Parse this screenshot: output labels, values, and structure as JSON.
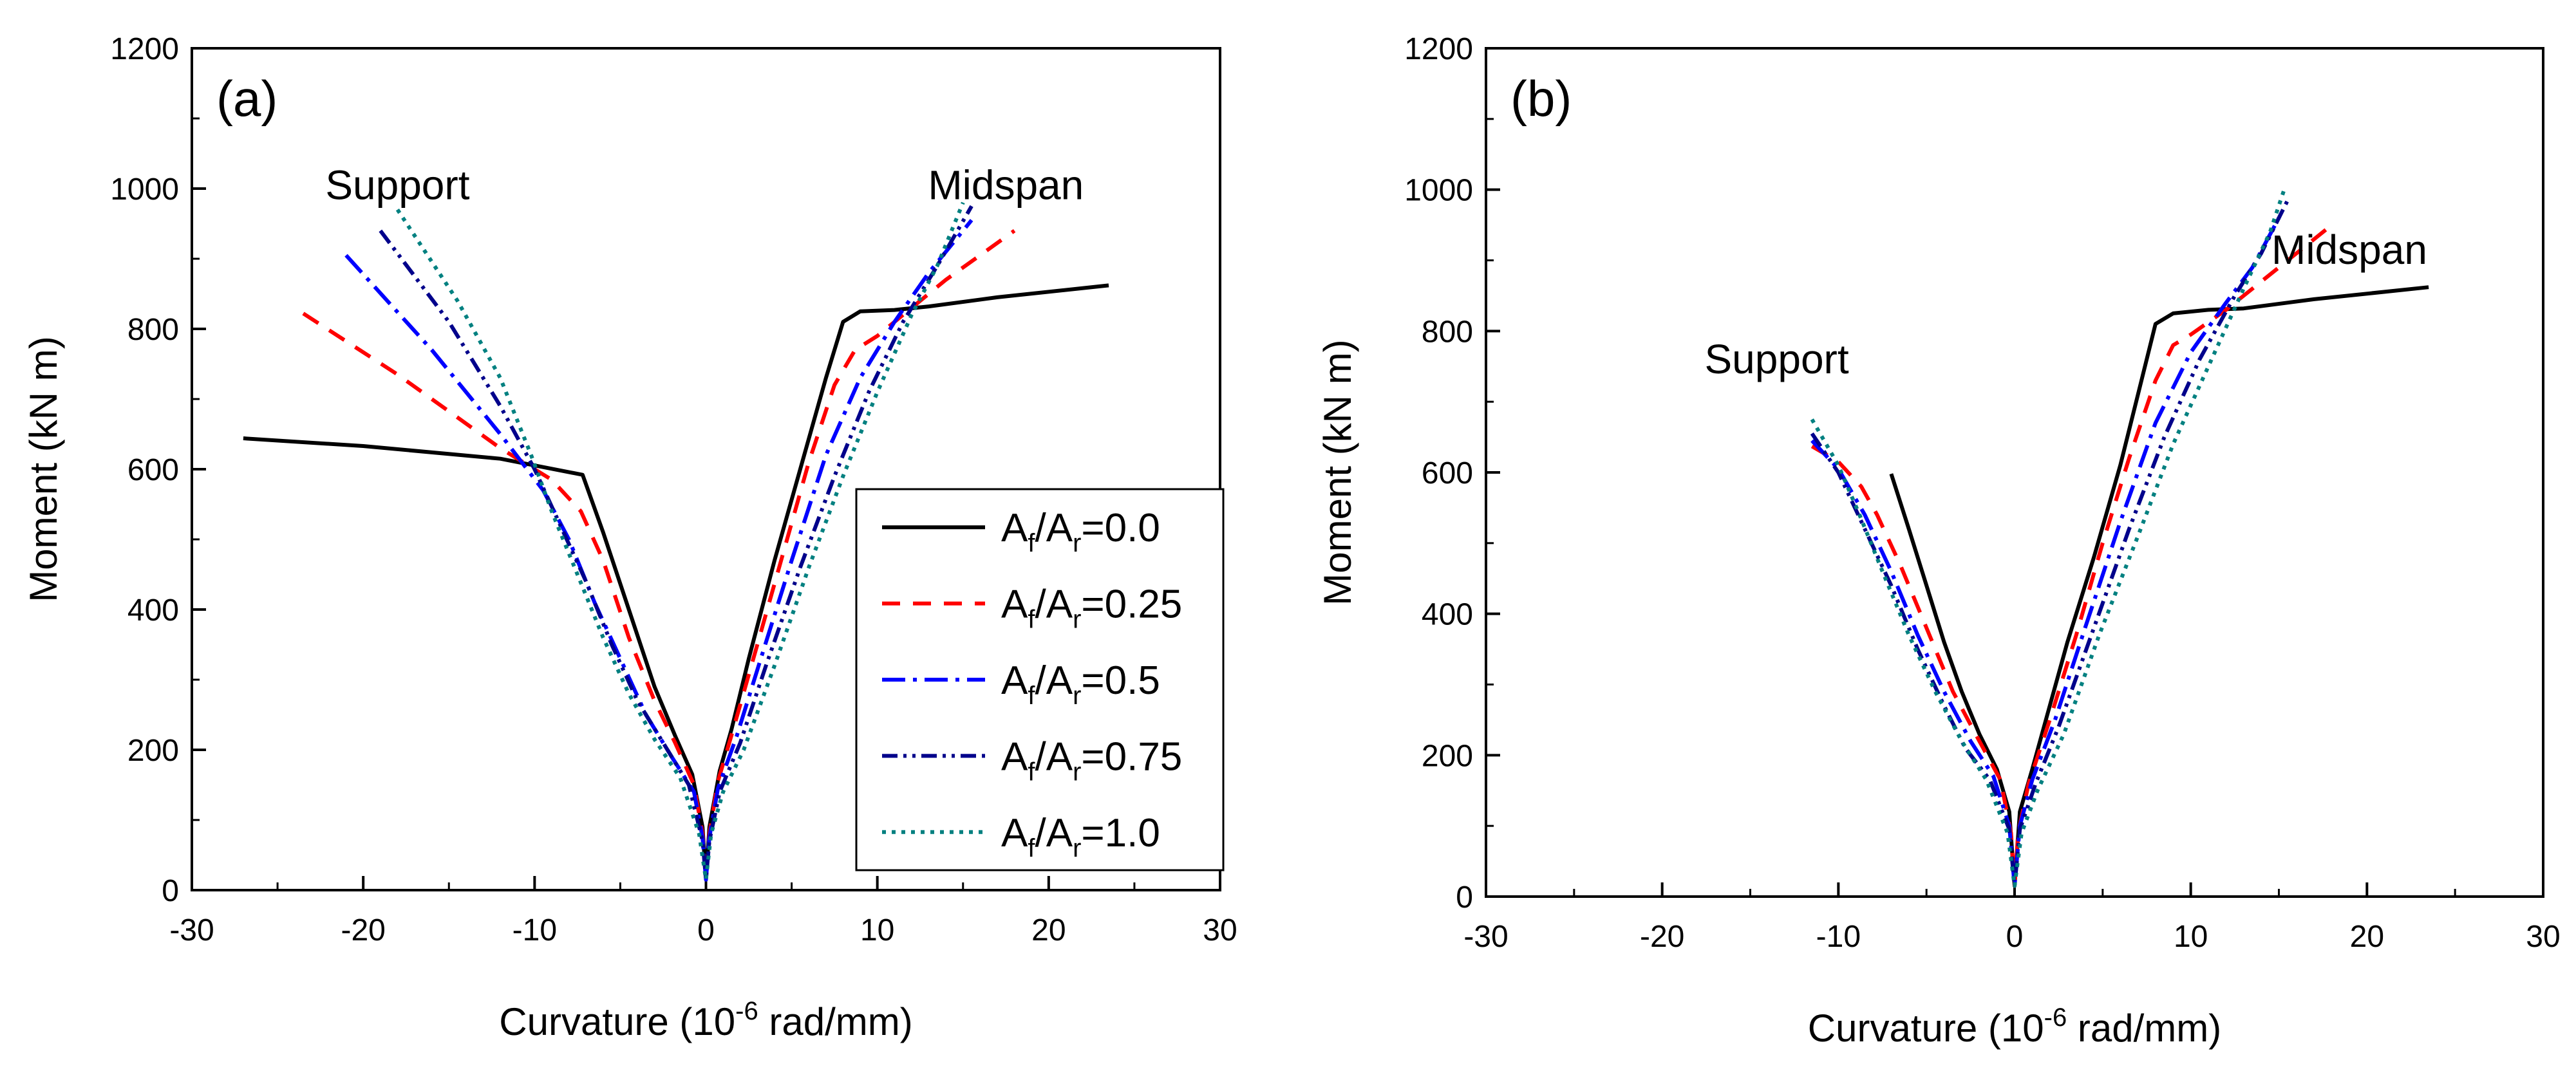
{
  "chart_data": [
    {
      "type": "line",
      "panel_label": "(a)",
      "xlabel_prefix": "Curvature (10",
      "xlabel_exp": "-6",
      "xlabel_suffix": " rad/mm)",
      "ylabel": "Moment (kN m)",
      "xlim": [
        -30,
        30
      ],
      "ylim": [
        0,
        1200
      ],
      "xticks": [
        -30,
        -20,
        -10,
        0,
        10,
        20,
        30
      ],
      "yticks": [
        0,
        200,
        400,
        600,
        800,
        1000,
        1200
      ],
      "annotations": [
        {
          "text": "Support",
          "x": -18,
          "y": 985
        },
        {
          "text": "Midspan",
          "x": 17.5,
          "y": 985
        }
      ],
      "legend_location": "center-right",
      "series": [
        {
          "name": "Af/Ar=0.0",
          "color": "#000000",
          "dash": "",
          "points": [
            [
              -27,
              644
            ],
            [
              -20,
              633
            ],
            [
              -12,
              615
            ],
            [
              -7.2,
              592
            ],
            [
              -6,
              510
            ],
            [
              -4.5,
              400
            ],
            [
              -3,
              290
            ],
            [
              -1.8,
              220
            ],
            [
              -0.8,
              165
            ],
            [
              -0.2,
              90
            ],
            [
              0,
              15
            ],
            [
              0.2,
              90
            ],
            [
              0.8,
              170
            ],
            [
              1.5,
              230
            ],
            [
              2.5,
              330
            ],
            [
              4,
              470
            ],
            [
              5.5,
              600
            ],
            [
              7,
              730
            ],
            [
              8,
              810
            ],
            [
              9,
              825
            ],
            [
              11,
              827
            ],
            [
              13,
              832
            ],
            [
              17,
              845
            ],
            [
              23.5,
              862
            ]
          ]
        },
        {
          "name": "Af/Ar=0.25",
          "color": "#ff0000",
          "dash": "28 20",
          "points": [
            [
              -23.5,
              822
            ],
            [
              -18,
              735
            ],
            [
              -12,
              630
            ],
            [
              -9,
              585
            ],
            [
              -7.3,
              540
            ],
            [
              -6,
              470
            ],
            [
              -4.5,
              360
            ],
            [
              -3,
              270
            ],
            [
              -1.8,
              210
            ],
            [
              -0.7,
              150
            ],
            [
              -0.2,
              80
            ],
            [
              0,
              15
            ],
            [
              0.2,
              80
            ],
            [
              0.7,
              155
            ],
            [
              1.6,
              230
            ],
            [
              3,
              350
            ],
            [
              4.5,
              480
            ],
            [
              6,
              610
            ],
            [
              7.5,
              720
            ],
            [
              8.7,
              770
            ],
            [
              10,
              790
            ],
            [
              12,
              830
            ],
            [
              14,
              870
            ],
            [
              18,
              940
            ]
          ]
        },
        {
          "name": "Af/Ar=0.5",
          "color": "#0000ff",
          "dash": "36 12 6 12",
          "points": [
            [
              -21,
              905
            ],
            [
              -16,
              770
            ],
            [
              -12,
              650
            ],
            [
              -9.5,
              570
            ],
            [
              -8,
              500
            ],
            [
              -6.5,
              410
            ],
            [
              -5,
              330
            ],
            [
              -3.5,
              250
            ],
            [
              -2,
              190
            ],
            [
              -0.7,
              140
            ],
            [
              -0.2,
              75
            ],
            [
              0,
              15
            ],
            [
              0.2,
              75
            ],
            [
              0.7,
              145
            ],
            [
              1.8,
              220
            ],
            [
              3.2,
              330
            ],
            [
              5,
              470
            ],
            [
              7,
              620
            ],
            [
              9,
              730
            ],
            [
              11,
              810
            ],
            [
              13,
              880
            ],
            [
              15.5,
              955
            ]
          ]
        },
        {
          "name": "Af/Ar=0.75",
          "color": "#00008b",
          "dash": "24 9 5 9 5 9",
          "points": [
            [
              -19,
              940
            ],
            [
              -15,
              810
            ],
            [
              -12,
              690
            ],
            [
              -10,
              600
            ],
            [
              -8.5,
              520
            ],
            [
              -7,
              440
            ],
            [
              -5.5,
              350
            ],
            [
              -4,
              270
            ],
            [
              -2.5,
              210
            ],
            [
              -1,
              150
            ],
            [
              -0.2,
              70
            ],
            [
              0,
              15
            ],
            [
              0.2,
              70
            ],
            [
              0.8,
              140
            ],
            [
              2,
              210
            ],
            [
              3.5,
              320
            ],
            [
              5.5,
              460
            ],
            [
              7.5,
              590
            ],
            [
              9.5,
              710
            ],
            [
              11.5,
              810
            ],
            [
              13.5,
              890
            ],
            [
              15.5,
              975
            ]
          ]
        },
        {
          "name": "Af/Ar=1.0",
          "color": "#008080",
          "dash": "6 9",
          "points": [
            [
              -18,
              970
            ],
            [
              -14.5,
              840
            ],
            [
              -12,
              730
            ],
            [
              -10.2,
              620
            ],
            [
              -9,
              540
            ],
            [
              -7.5,
              450
            ],
            [
              -6,
              360
            ],
            [
              -4.5,
              280
            ],
            [
              -3,
              215
            ],
            [
              -1.5,
              160
            ],
            [
              -0.4,
              80
            ],
            [
              0,
              15
            ],
            [
              0.3,
              80
            ],
            [
              1,
              140
            ],
            [
              2.2,
              200
            ],
            [
              4,
              320
            ],
            [
              6,
              460
            ],
            [
              8,
              590
            ],
            [
              10,
              710
            ],
            [
              12,
              820
            ],
            [
              13.5,
              890
            ],
            [
              15,
              980
            ]
          ]
        }
      ]
    },
    {
      "type": "line",
      "panel_label": "(b)",
      "xlabel_prefix": "Curvature (10",
      "xlabel_exp": "-6",
      "xlabel_suffix": " rad/mm)",
      "ylabel": "Moment (kN m)",
      "xlim": [
        -30,
        30
      ],
      "ylim": [
        0,
        1200
      ],
      "xticks": [
        -30,
        -20,
        -10,
        0,
        10,
        20,
        30
      ],
      "yticks": [
        0,
        200,
        400,
        600,
        800,
        1000,
        1200
      ],
      "annotations": [
        {
          "text": "Support",
          "x": -13.5,
          "y": 740
        },
        {
          "text": "Midspan",
          "x": 19,
          "y": 895
        }
      ],
      "series": [
        {
          "name": "Af/Ar=0.0",
          "color": "#000000",
          "dash": "",
          "points": [
            [
              -7,
              598
            ],
            [
              -6,
              520
            ],
            [
              -5,
              440
            ],
            [
              -4,
              360
            ],
            [
              -3,
              290
            ],
            [
              -2,
              230
            ],
            [
              -1,
              180
            ],
            [
              -0.3,
              120
            ],
            [
              0,
              15
            ],
            [
              0.3,
              120
            ],
            [
              1,
              180
            ],
            [
              2,
              270
            ],
            [
              3,
              360
            ],
            [
              4.5,
              480
            ],
            [
              6,
              610
            ],
            [
              7,
              710
            ],
            [
              8,
              810
            ],
            [
              9,
              825
            ],
            [
              11,
              830
            ],
            [
              13,
              832
            ],
            [
              17,
              845
            ],
            [
              23.5,
              862
            ]
          ]
        },
        {
          "name": "Af/Ar=0.25",
          "color": "#ff0000",
          "dash": "28 20",
          "points": [
            [
              -11.5,
              637
            ],
            [
              -10,
              615
            ],
            [
              -8.7,
              580
            ],
            [
              -7.8,
              540
            ],
            [
              -6.5,
              470
            ],
            [
              -5,
              380
            ],
            [
              -3.5,
              290
            ],
            [
              -2,
              220
            ],
            [
              -0.8,
              165
            ],
            [
              -0.2,
              90
            ],
            [
              0,
              15
            ],
            [
              0.2,
              90
            ],
            [
              0.8,
              160
            ],
            [
              2,
              250
            ],
            [
              3.5,
              370
            ],
            [
              5,
              500
            ],
            [
              6.5,
              620
            ],
            [
              8,
              730
            ],
            [
              9,
              780
            ],
            [
              10,
              795
            ],
            [
              12,
              830
            ],
            [
              14,
              870
            ],
            [
              18,
              950
            ]
          ]
        },
        {
          "name": "Af/Ar=0.5",
          "color": "#0000ff",
          "dash": "36 12 6 12",
          "points": [
            [
              -11.5,
              645
            ],
            [
              -10,
              605
            ],
            [
              -8.5,
              540
            ],
            [
              -7,
              460
            ],
            [
              -5.5,
              370
            ],
            [
              -4,
              290
            ],
            [
              -2.5,
              220
            ],
            [
              -1.2,
              170
            ],
            [
              -0.3,
              100
            ],
            [
              0,
              15
            ],
            [
              0.3,
              100
            ],
            [
              1,
              165
            ],
            [
              2.3,
              250
            ],
            [
              4,
              380
            ],
            [
              6,
              530
            ],
            [
              8,
              670
            ],
            [
              10,
              770
            ],
            [
              12,
              840
            ],
            [
              13.5,
              890
            ],
            [
              15,
              960
            ]
          ]
        },
        {
          "name": "Af/Ar=0.75",
          "color": "#00008b",
          "dash": "24 9 5 9 5 9",
          "points": [
            [
              -11.5,
              655
            ],
            [
              -10,
              600
            ],
            [
              -8.5,
              520
            ],
            [
              -7,
              440
            ],
            [
              -5.5,
              350
            ],
            [
              -4,
              270
            ],
            [
              -2.8,
              210
            ],
            [
              -1.4,
              165
            ],
            [
              -0.3,
              95
            ],
            [
              0,
              15
            ],
            [
              0.3,
              95
            ],
            [
              1.2,
              160
            ],
            [
              2.5,
              240
            ],
            [
              4.5,
              380
            ],
            [
              6.5,
              520
            ],
            [
              8.5,
              650
            ],
            [
              10.5,
              760
            ],
            [
              12.5,
              850
            ],
            [
              14,
              910
            ],
            [
              15.5,
              985
            ]
          ]
        },
        {
          "name": "Af/Ar=1.0",
          "color": "#008080",
          "dash": "6 9",
          "points": [
            [
              -11.5,
              675
            ],
            [
              -10,
              610
            ],
            [
              -8.8,
              540
            ],
            [
              -7.5,
              460
            ],
            [
              -6,
              370
            ],
            [
              -4.5,
              290
            ],
            [
              -3,
              220
            ],
            [
              -1.6,
              165
            ],
            [
              -0.4,
              90
            ],
            [
              0,
              15
            ],
            [
              0.4,
              90
            ],
            [
              1.3,
              150
            ],
            [
              2.8,
              230
            ],
            [
              4.8,
              370
            ],
            [
              7,
              510
            ],
            [
              9,
              640
            ],
            [
              11,
              750
            ],
            [
              13,
              860
            ],
            [
              14.5,
              940
            ],
            [
              15.3,
              1000
            ]
          ]
        }
      ]
    }
  ],
  "legend": {
    "items": [
      {
        "base": "A",
        "sub1": "f",
        "slash": "/A",
        "sub2": "r",
        "value": "=0.0",
        "color": "#000000",
        "dash": ""
      },
      {
        "base": "A",
        "sub1": "f",
        "slash": "/A",
        "sub2": "r",
        "value": "=0.25",
        "color": "#ff0000",
        "dash": "28 20"
      },
      {
        "base": "A",
        "sub1": "f",
        "slash": "/A",
        "sub2": "r",
        "value": "=0.5",
        "color": "#0000ff",
        "dash": "36 12 6 12"
      },
      {
        "base": "A",
        "sub1": "f",
        "slash": "/A",
        "sub2": "r",
        "value": "=0.75",
        "color": "#00008b",
        "dash": "24 9 5 9 5 9"
      },
      {
        "base": "A",
        "sub1": "f",
        "slash": "/A",
        "sub2": "r",
        "value": "=1.0",
        "color": "#008080",
        "dash": "6 9"
      }
    ]
  }
}
